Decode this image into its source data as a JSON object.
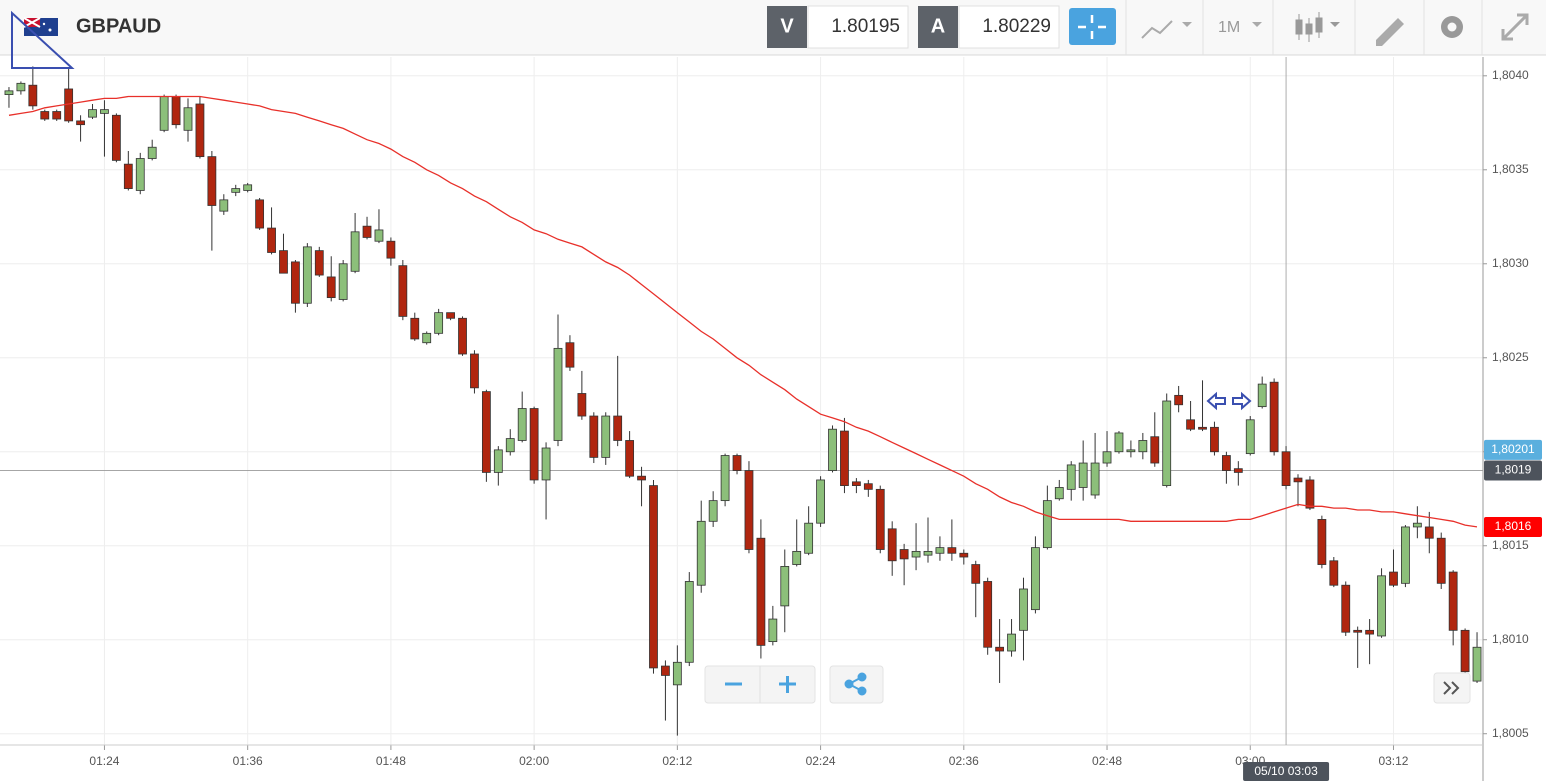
{
  "header": {
    "symbol": "GBPAUD",
    "bid_label": "V",
    "bid": "1.80195",
    "ask_label": "A",
    "ask": "1.80229",
    "timeframe": "1M"
  },
  "chart_data": {
    "type": "candlestick",
    "categories": [
      null,
      null,
      null,
      null,
      null,
      null,
      null,
      null,
      "01:24",
      null,
      null,
      null,
      null,
      null,
      null,
      null,
      null,
      null,
      null,
      null,
      "01:36",
      null,
      null,
      null,
      null,
      null,
      null,
      null,
      null,
      null,
      null,
      null,
      "01:48",
      null,
      null,
      null,
      null,
      null,
      null,
      null,
      null,
      null,
      null,
      null,
      "02:00",
      null,
      null,
      null,
      null,
      null,
      null,
      null,
      null,
      null,
      null,
      null,
      "02:12",
      null,
      null,
      null,
      null,
      null,
      null,
      null,
      null,
      null,
      null,
      null,
      "02:24",
      null,
      null,
      null,
      null,
      null,
      null,
      null,
      null,
      null,
      null,
      null,
      "02:36",
      null,
      null,
      null,
      null,
      null,
      null,
      null,
      null,
      null,
      null,
      null,
      "02:48",
      null,
      null,
      null,
      null,
      null,
      null,
      null,
      null,
      null,
      null,
      null,
      "03:00",
      null,
      null,
      null,
      null,
      null,
      null,
      null,
      null,
      null,
      null,
      null,
      "03:12",
      null,
      null,
      null,
      null,
      null,
      null,
      null
    ],
    "open": [
      1.8039,
      1.80392,
      1.80395,
      1.80381,
      1.80381,
      1.80393,
      1.80376,
      1.80378,
      1.8038,
      1.80379,
      1.80353,
      1.80339,
      1.80356,
      1.80371,
      1.80389,
      1.80371,
      1.80385,
      1.80357,
      1.80328,
      1.80338,
      1.80339,
      1.80334,
      1.80319,
      1.80307,
      1.80301,
      1.80279,
      1.80307,
      1.80293,
      1.80281,
      1.80296,
      1.8032,
      1.80312,
      1.80312,
      1.80299,
      1.80271,
      1.80258,
      1.80263,
      1.80274,
      1.80271,
      1.80252,
      1.80232,
      1.80189,
      1.802,
      1.80206,
      1.80223,
      1.80185,
      1.80206,
      1.80258,
      1.80231,
      1.80219,
      1.80197,
      1.80219,
      1.80206,
      1.80187,
      1.80182,
      1.80086,
      1.80076,
      1.80088,
      1.80129,
      1.80163,
      1.80174,
      1.80198,
      1.8019,
      1.80154,
      1.80099,
      1.80118,
      1.8014,
      1.80146,
      1.80162,
      1.8019,
      1.80211,
      1.80184,
      1.80183,
      1.8018,
      1.80159,
      1.80148,
      1.80144,
      1.80145,
      1.80146,
      1.80149,
      1.80146,
      1.8014,
      1.80131,
      1.80096,
      1.80094,
      1.80105,
      1.80116,
      1.80149,
      1.80175,
      1.8018,
      1.80181,
      1.80177,
      1.80194,
      1.802,
      1.802,
      1.802,
      1.80208,
      1.80182,
      1.8023,
      1.80217,
      1.80213,
      1.80213,
      1.80198,
      1.80191,
      1.80199,
      1.80224,
      1.80237,
      1.802,
      1.80186,
      1.80185,
      1.80164,
      1.80142,
      1.80129,
      1.80105,
      1.80105,
      1.80102,
      1.80136,
      1.8013,
      1.8016,
      1.8016,
      1.80154,
      1.80136,
      1.80105,
      1.80078
    ],
    "high": [
      1.80394,
      1.80397,
      1.80405,
      1.80382,
      1.80382,
      1.80404,
      1.80379,
      1.80385,
      1.80387,
      1.8038,
      1.8036,
      1.80359,
      1.80366,
      1.8039,
      1.8039,
      1.80388,
      1.80389,
      1.8036,
      1.80337,
      1.80342,
      1.80343,
      1.80335,
      1.8033,
      1.80316,
      1.80302,
      1.80311,
      1.80309,
      1.80304,
      1.80302,
      1.80327,
      1.80325,
      1.80329,
      1.80314,
      1.80302,
      1.80274,
      1.80264,
      1.80276,
      1.80274,
      1.80272,
      1.80254,
      1.80233,
      1.80203,
      1.80212,
      1.80232,
      1.80224,
      1.80205,
      1.80273,
      1.80262,
      1.80243,
      1.80221,
      1.80221,
      1.80251,
      1.80211,
      1.80192,
      1.80185,
      1.80089,
      1.80097,
      1.80136,
      1.80174,
      1.80179,
      1.80199,
      1.80199,
      1.80195,
      1.80164,
      1.80118,
      1.80148,
      1.80164,
      1.80171,
      1.80187,
      1.80214,
      1.80218,
      1.80186,
      1.80185,
      1.80182,
      1.80163,
      1.80151,
      1.80162,
      1.80165,
      1.80155,
      1.80164,
      1.80148,
      1.80142,
      1.80133,
      1.80111,
      1.80111,
      1.80133,
      1.80155,
      1.80182,
      1.80185,
      1.80195,
      1.80206,
      1.8021,
      1.80211,
      1.80211,
      1.80206,
      1.8021,
      1.80221,
      1.80231,
      1.80235,
      1.80227,
      1.80238,
      1.80216,
      1.802,
      1.80195,
      1.80219,
      1.8024,
      1.80239,
      1.80203,
      1.80188,
      1.80187,
      1.80166,
      1.80144,
      1.80131,
      1.80107,
      1.80111,
      1.80138,
      1.80148,
      1.80161,
      1.80171,
      1.80168,
      1.80157,
      1.80137,
      1.80106,
      1.80104
    ],
    "low": [
      1.80383,
      1.8039,
      1.80382,
      1.80376,
      1.80376,
      1.80375,
      1.80365,
      1.80377,
      1.80357,
      1.80354,
      1.80339,
      1.80337,
      1.80355,
      1.8037,
      1.80372,
      1.80365,
      1.80356,
      1.80307,
      1.80326,
      1.80336,
      1.80338,
      1.80318,
      1.80305,
      1.80295,
      1.80274,
      1.80277,
      1.80293,
      1.8028,
      1.8028,
      1.80295,
      1.80313,
      1.80311,
      1.80299,
      1.8027,
      1.80259,
      1.80257,
      1.80262,
      1.8027,
      1.80251,
      1.80231,
      1.80184,
      1.80182,
      1.80198,
      1.80205,
      1.80183,
      1.80164,
      1.80203,
      1.80243,
      1.80217,
      1.80194,
      1.80193,
      1.80203,
      1.80186,
      1.80171,
      1.80082,
      1.80057,
      1.80049,
      1.80086,
      1.80125,
      1.8016,
      1.80171,
      1.80188,
      1.80146,
      1.8009,
      1.80097,
      1.80104,
      1.80139,
      1.80145,
      1.8016,
      1.80189,
      1.80178,
      1.80178,
      1.80176,
      1.80146,
      1.80134,
      1.80129,
      1.80137,
      1.80141,
      1.80142,
      1.80142,
      1.8014,
      1.80112,
      1.80092,
      1.80077,
      1.80091,
      1.80089,
      1.80114,
      1.80148,
      1.80174,
      1.80174,
      1.80174,
      1.80175,
      1.80192,
      1.80199,
      1.80197,
      1.80196,
      1.80192,
      1.80181,
      1.80221,
      1.80211,
      1.80211,
      1.80198,
      1.80183,
      1.80182,
      1.80198,
      1.80223,
      1.80198,
      1.8018,
      1.80171,
      1.80169,
      1.80138,
      1.80128,
      1.80102,
      1.80085,
      1.80087,
      1.80101,
      1.80128,
      1.80128,
      1.80154,
      1.80146,
      1.80127,
      1.80097,
      1.8008,
      1.80077
    ],
    "close": [
      1.80392,
      1.80396,
      1.80384,
      1.80377,
      1.80377,
      1.80376,
      1.80374,
      1.80382,
      1.80382,
      1.80355,
      1.8034,
      1.80356,
      1.80362,
      1.80389,
      1.80374,
      1.80383,
      1.80357,
      1.80331,
      1.80334,
      1.8034,
      1.80342,
      1.80319,
      1.80306,
      1.80295,
      1.80279,
      1.80309,
      1.80294,
      1.80282,
      1.803,
      1.80317,
      1.80314,
      1.80318,
      1.80303,
      1.80272,
      1.8026,
      1.80263,
      1.80274,
      1.80271,
      1.80252,
      1.80234,
      1.80189,
      1.80201,
      1.80207,
      1.80223,
      1.80185,
      1.80202,
      1.80255,
      1.80245,
      1.80219,
      1.80197,
      1.80219,
      1.80206,
      1.80187,
      1.80185,
      1.80085,
      1.80081,
      1.80088,
      1.80131,
      1.80163,
      1.80174,
      1.80198,
      1.8019,
      1.80148,
      1.80097,
      1.80111,
      1.80139,
      1.80147,
      1.80162,
      1.80185,
      1.80212,
      1.80182,
      1.80182,
      1.8018,
      1.80148,
      1.80142,
      1.80143,
      1.80147,
      1.80147,
      1.80149,
      1.80146,
      1.80144,
      1.8013,
      1.80096,
      1.80094,
      1.80103,
      1.80127,
      1.80149,
      1.80174,
      1.80181,
      1.80193,
      1.80194,
      1.80194,
      1.802,
      1.8021,
      1.80201,
      1.80206,
      1.80194,
      1.80227,
      1.80225,
      1.80212,
      1.80212,
      1.802,
      1.8019,
      1.80189,
      1.80217,
      1.80236,
      1.802,
      1.80182,
      1.80184,
      1.8017,
      1.8014,
      1.80129,
      1.80104,
      1.80104,
      1.80103,
      1.80134,
      1.80129,
      1.8016,
      1.80162,
      1.80154,
      1.8013,
      1.80105,
      1.80083,
      1.80096
    ],
    "up_color": "#8cbf7a",
    "down_color": "#b0260f",
    "ma": {
      "color": "#e8302a",
      "values": [
        1.80379,
        1.8038,
        1.80381,
        1.80383,
        1.80384,
        1.80385,
        1.80386,
        1.80387,
        1.80388,
        1.80388,
        1.80389,
        1.80389,
        1.80389,
        1.80389,
        1.80389,
        1.80389,
        1.80389,
        1.80388,
        1.80387,
        1.80386,
        1.80385,
        1.80384,
        1.80382,
        1.80381,
        1.8038,
        1.80378,
        1.80376,
        1.80374,
        1.80372,
        1.80369,
        1.80366,
        1.80364,
        1.80361,
        1.80357,
        1.80354,
        1.8035,
        1.80347,
        1.80343,
        1.8034,
        1.80336,
        1.80333,
        1.80329,
        1.80325,
        1.80322,
        1.80318,
        1.80316,
        1.80313,
        1.80311,
        1.80309,
        1.80305,
        1.80301,
        1.80298,
        1.80294,
        1.80289,
        1.80284,
        1.80279,
        1.80274,
        1.80269,
        1.80264,
        1.8026,
        1.80255,
        1.8025,
        1.80246,
        1.80241,
        1.80237,
        1.80233,
        1.80228,
        1.80224,
        1.8022,
        1.80218,
        1.80216,
        1.80213,
        1.80211,
        1.80208,
        1.80205,
        1.80202,
        1.80199,
        1.80196,
        1.80193,
        1.8019,
        1.80187,
        1.80183,
        1.8018,
        1.80176,
        1.80173,
        1.80171,
        1.80168,
        1.80166,
        1.80164,
        1.80164,
        1.80164,
        1.80164,
        1.80164,
        1.80164,
        1.80163,
        1.80163,
        1.80163,
        1.80163,
        1.80163,
        1.80163,
        1.80163,
        1.80163,
        1.80163,
        1.80164,
        1.80164,
        1.80166,
        1.80168,
        1.8017,
        1.80172,
        1.80171,
        1.80171,
        1.8017,
        1.8017,
        1.80169,
        1.80169,
        1.80168,
        1.80168,
        1.80167,
        1.80166,
        1.80165,
        1.80164,
        1.80163,
        1.80161,
        1.8016
      ]
    },
    "ylim": [
      1.80044,
      1.8041
    ],
    "yticks": [
      {
        "value": 1.8005,
        "label": "1,8005"
      },
      {
        "value": 1.801,
        "label": "1,8010"
      },
      {
        "value": 1.8015,
        "label": "1,8015"
      },
      {
        "value": 1.802,
        "label": "1,8020"
      },
      {
        "value": 1.8025,
        "label": "1,8025"
      },
      {
        "value": 1.803,
        "label": "1,8030"
      },
      {
        "value": 1.8035,
        "label": "1,8035"
      },
      {
        "value": 1.804,
        "label": "1,8040"
      }
    ],
    "grid": true,
    "price_tags": [
      {
        "value": 1.80201,
        "label": "1,80201",
        "color": "#5aafde"
      },
      {
        "value": 1.8019,
        "label": "1,8019",
        "color": "#4d535c"
      },
      {
        "value": 1.8016,
        "label": "1,8016",
        "color": "#ff0000"
      }
    ],
    "crosshair_label": "05/10 03:03"
  }
}
